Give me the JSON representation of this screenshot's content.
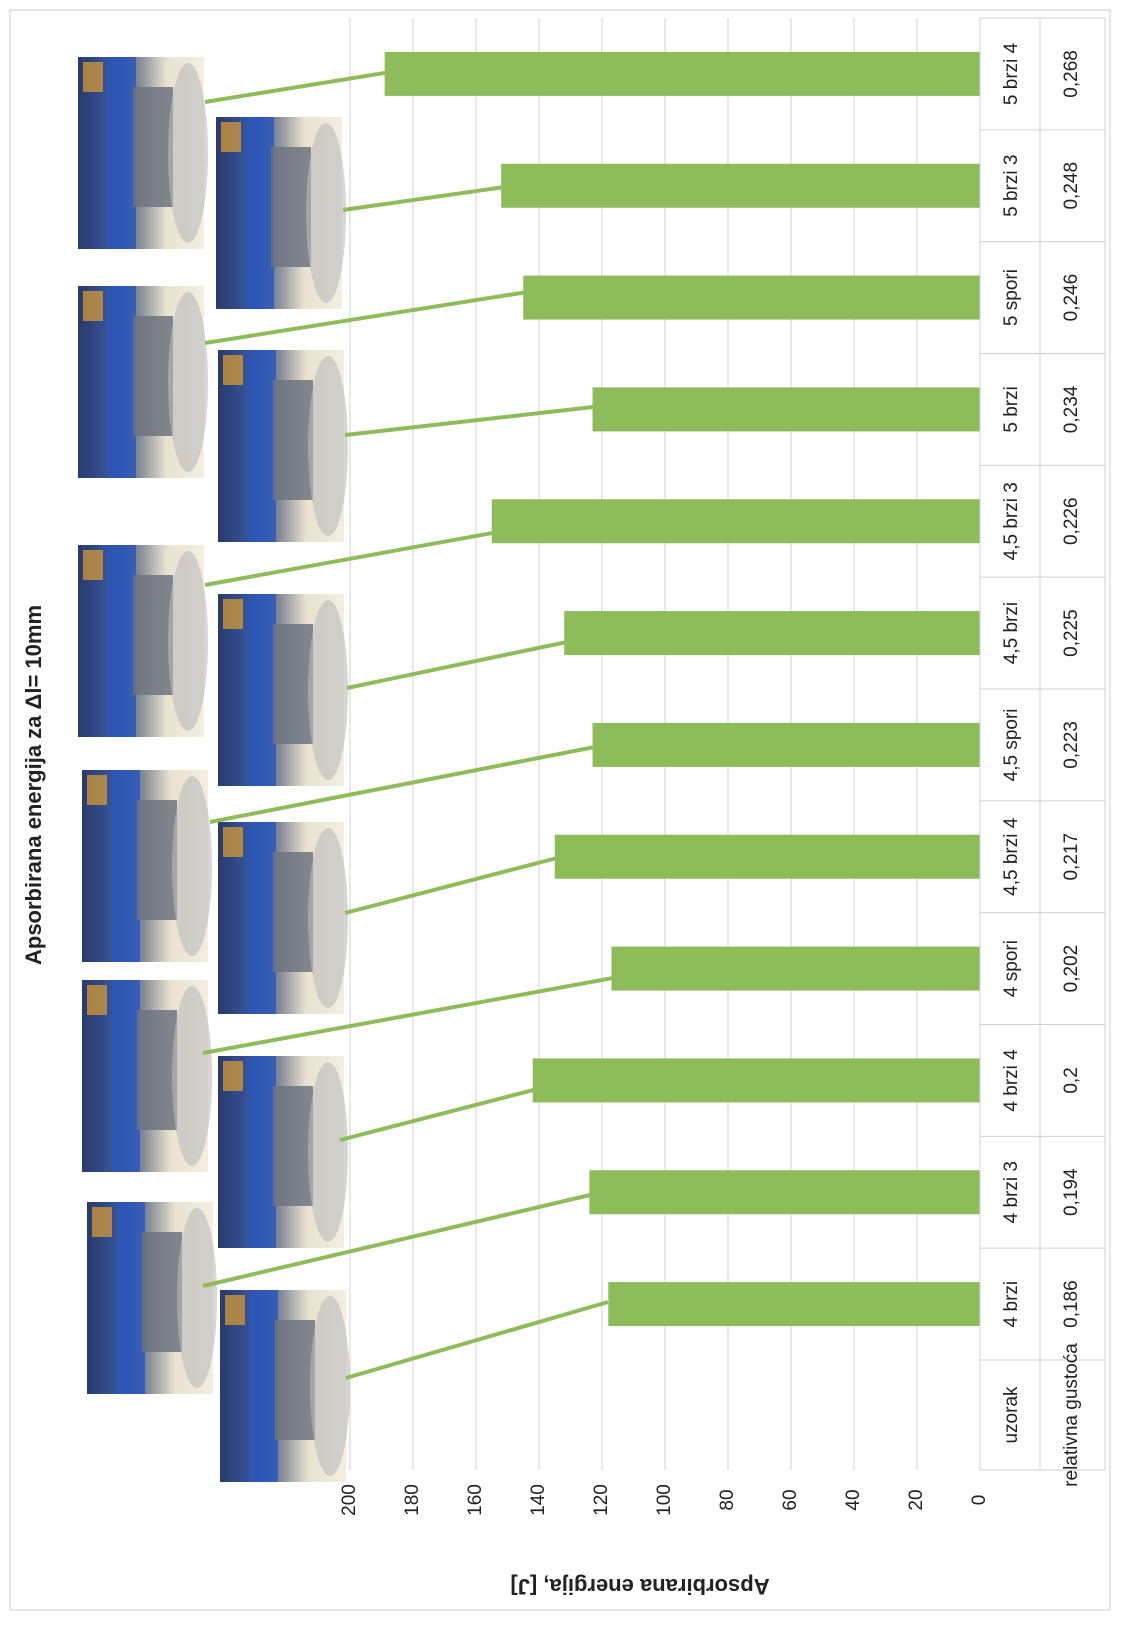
{
  "chart_data": {
    "type": "bar",
    "title": "Apsorbirana energija za  Δl= 10mm",
    "y_axis_label": "Apsorbirana energija, [J]",
    "categories": [
      "4 brzi",
      "4 brzi 3",
      "4 brzi 4",
      "4 spori",
      "4,5 brzi 4",
      "4,5 spori",
      "4,5 brzi",
      "4,5 brzi 3",
      "5 brzi",
      "5 spori",
      "5 brzi 3",
      "5 brzi 4"
    ],
    "values": [
      118,
      124,
      142,
      117,
      135,
      123,
      132,
      155,
      123,
      145,
      152,
      189
    ],
    "color": "#8fbc5a",
    "ylim": [
      0,
      200
    ],
    "yticks": [
      0,
      20,
      40,
      60,
      80,
      100,
      120,
      140,
      160,
      180,
      200
    ],
    "grid": true,
    "table": {
      "row_labels": [
        "uzorak",
        "relativna gustoća"
      ],
      "relative_density": [
        "0,186",
        "0,194",
        "0,2",
        "0,202",
        "0,217",
        "0,223",
        "0,225",
        "0,226",
        "0,234",
        "0,246",
        "0,248",
        "0,268"
      ]
    }
  }
}
